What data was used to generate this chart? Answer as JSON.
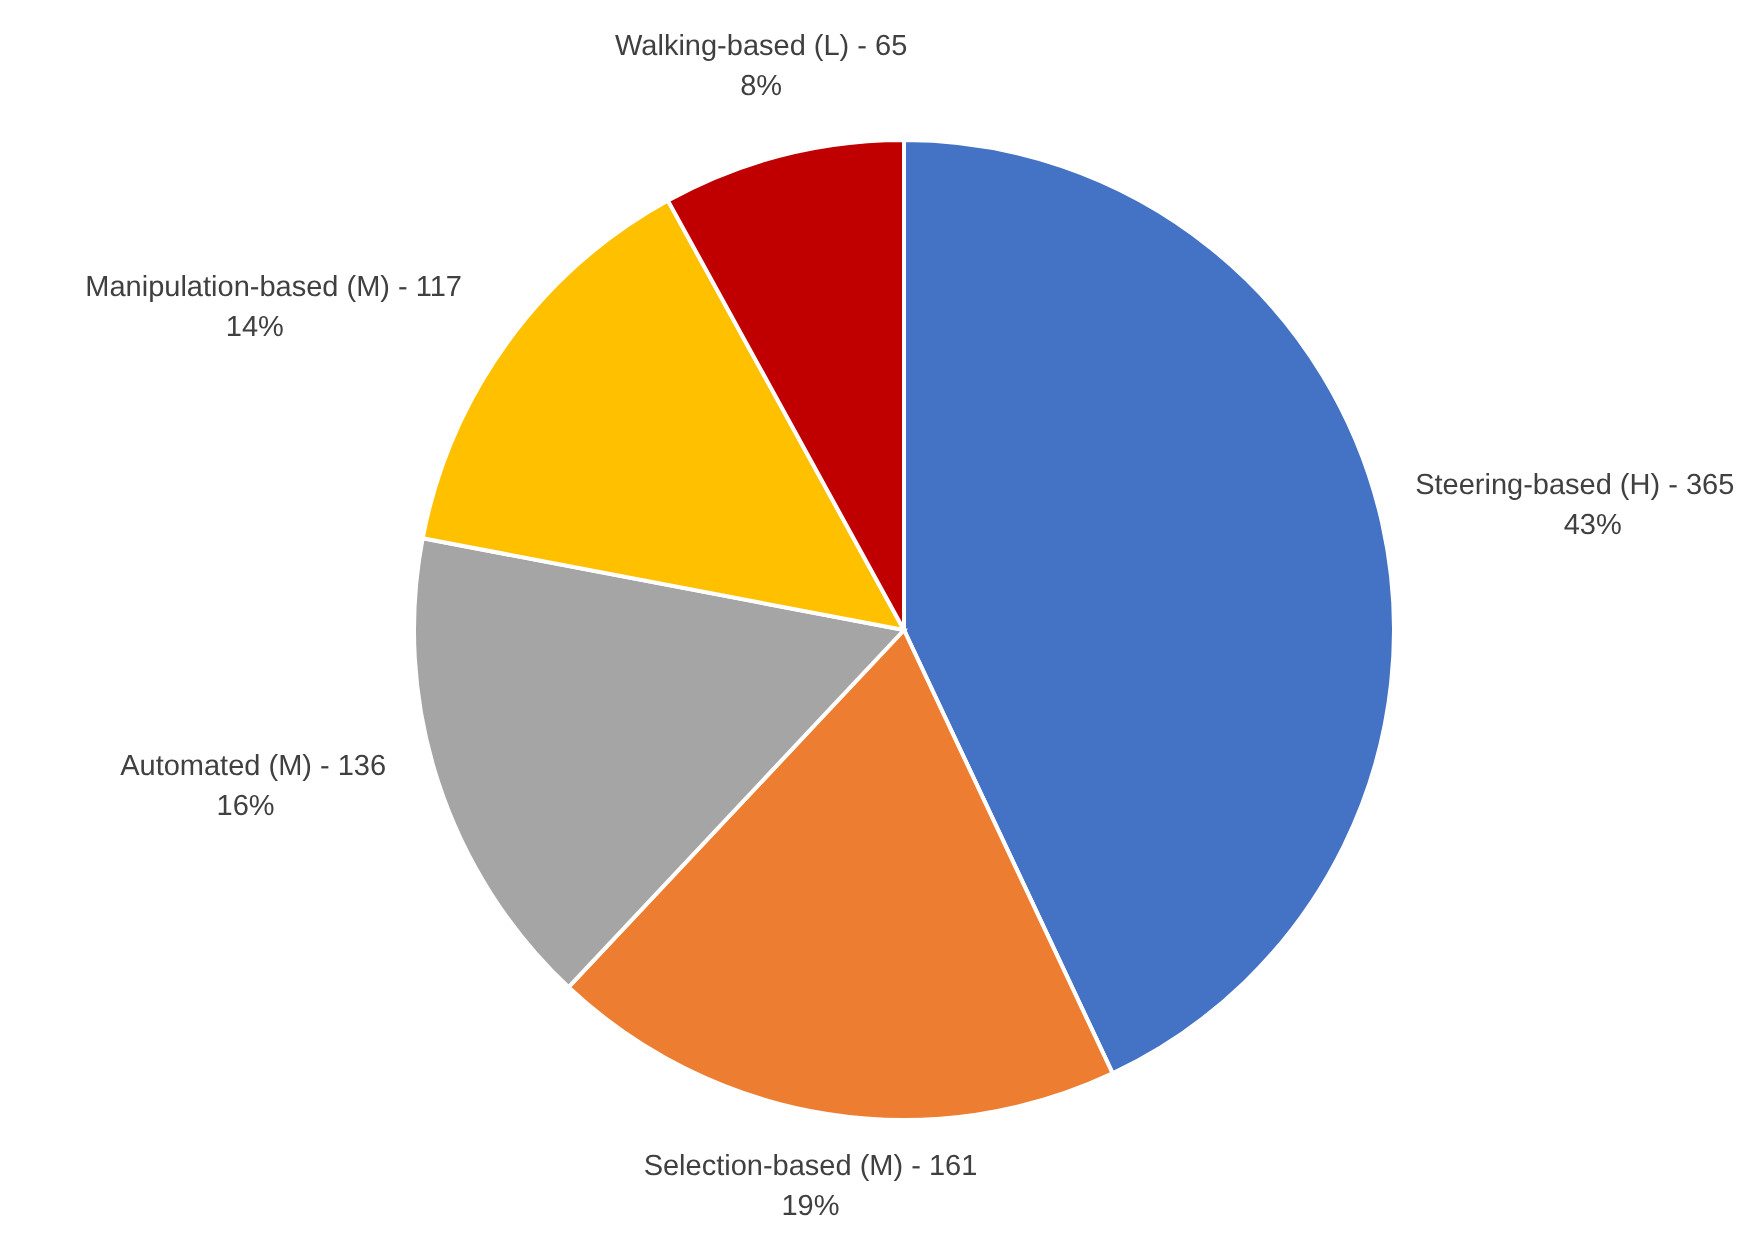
{
  "chart_data": {
    "type": "pie",
    "categories": [
      "Steering-based (H) - 365",
      "Selection-based (M) - 161",
      "Automated (M) - 136",
      "Manipulation-based (M) - 117",
      "Walking-based (L) - 65"
    ],
    "values": [
      43,
      19,
      16,
      14,
      8
    ],
    "value_labels": [
      "43%",
      "19%",
      "16%",
      "14%",
      "8%"
    ],
    "colors": [
      "#4472c4",
      "#ed7d31",
      "#a5a5a5",
      "#ffc000",
      "#c00000"
    ]
  }
}
